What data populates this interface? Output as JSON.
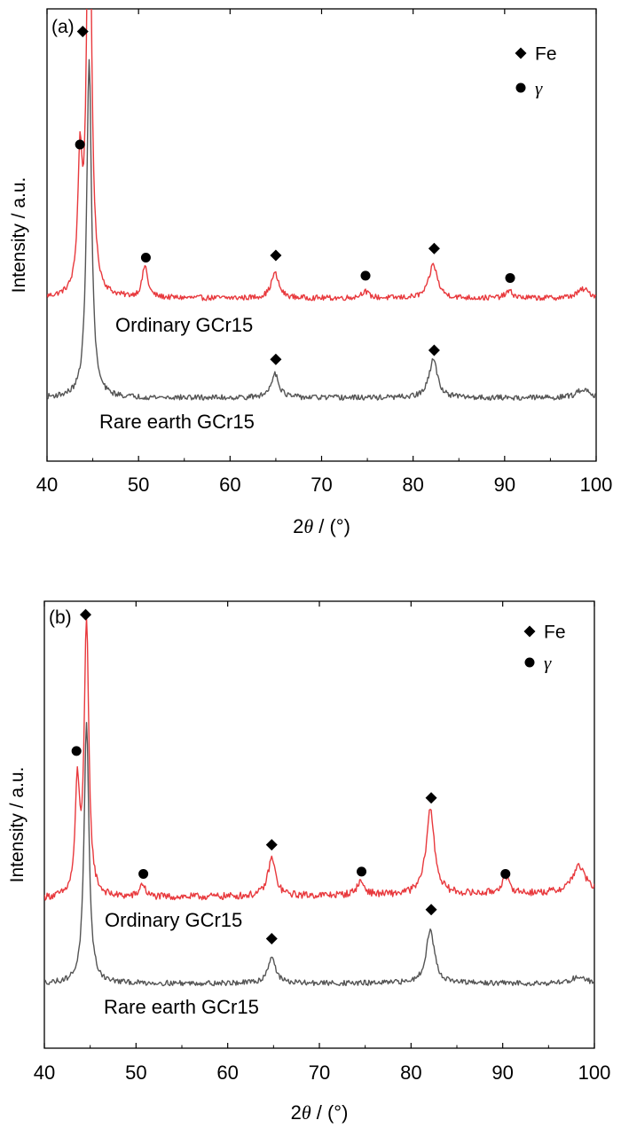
{
  "chart_data": [
    {
      "type": "line",
      "panel_label": "(a)",
      "xlabel_prefix": "2",
      "xlabel_symbol": "θ",
      "xlabel_suffix": " / (°)",
      "ylabel": "Intensity / a.u.",
      "xlim": [
        40,
        100
      ],
      "x_ticks": [
        "40",
        "50",
        "60",
        "70",
        "80",
        "90",
        "100"
      ],
      "legend": {
        "position": "top-right",
        "entries": [
          {
            "marker": "diamond",
            "label": "Fe",
            "italic": false
          },
          {
            "marker": "circle",
            "label": "γ",
            "italic": true
          }
        ]
      },
      "series": [
        {
          "label": "Ordinary GCr15",
          "color": "#e8393d",
          "baseline": 0.36,
          "background_slope": 0.0,
          "noise": 0.006,
          "peaks": [
            {
              "x": 43.6,
              "height": 0.28,
              "width": 0.28
            },
            {
              "x": 44.6,
              "height": 1.05,
              "width": 0.3
            },
            {
              "x": 50.7,
              "height": 0.07,
              "width": 0.35
            },
            {
              "x": 64.9,
              "height": 0.055,
              "width": 0.5
            },
            {
              "x": 74.7,
              "height": 0.015,
              "width": 0.5
            },
            {
              "x": 82.2,
              "height": 0.075,
              "width": 0.55
            },
            {
              "x": 90.5,
              "height": 0.015,
              "width": 0.5
            },
            {
              "x": 98.6,
              "height": 0.02,
              "width": 0.8
            }
          ],
          "markers": [
            {
              "x": 43.9,
              "y": 0.95,
              "type": "diamond"
            },
            {
              "x": 43.6,
              "y": 0.7,
              "type": "circle"
            },
            {
              "x": 50.8,
              "y": 0.45,
              "type": "circle"
            },
            {
              "x": 65.0,
              "y": 0.455,
              "type": "diamond"
            },
            {
              "x": 74.8,
              "y": 0.41,
              "type": "circle"
            },
            {
              "x": 82.3,
              "y": 0.47,
              "type": "diamond"
            },
            {
              "x": 90.6,
              "y": 0.405,
              "type": "circle"
            }
          ]
        },
        {
          "label": "Rare earth GCr15",
          "color": "#555555",
          "baseline": 0.14,
          "background_slope": 0.0,
          "noise": 0.006,
          "peaks": [
            {
              "x": 44.6,
              "height": 0.75,
              "width": 0.32
            },
            {
              "x": 64.9,
              "height": 0.055,
              "width": 0.5
            },
            {
              "x": 82.2,
              "height": 0.085,
              "width": 0.55
            },
            {
              "x": 98.6,
              "height": 0.02,
              "width": 0.8
            }
          ],
          "markers": [
            {
              "x": 65.0,
              "y": 0.225,
              "type": "diamond"
            },
            {
              "x": 82.3,
              "y": 0.245,
              "type": "diamond"
            }
          ]
        }
      ]
    },
    {
      "type": "line",
      "panel_label": "(b)",
      "xlabel_prefix": "2",
      "xlabel_symbol": "θ",
      "xlabel_suffix": " / (°)",
      "ylabel": "Intensity / a.u.",
      "xlim": [
        40,
        100
      ],
      "x_ticks": [
        "40",
        "50",
        "60",
        "70",
        "80",
        "90",
        "100"
      ],
      "legend": {
        "position": "top-right",
        "entries": [
          {
            "marker": "diamond",
            "label": "Fe",
            "italic": false
          },
          {
            "marker": "circle",
            "label": "γ",
            "italic": true
          }
        ]
      },
      "series": [
        {
          "label": "Ordinary GCr15",
          "color": "#e8393d",
          "baseline": 0.335,
          "background_slope": 0.0002,
          "noise": 0.008,
          "peaks": [
            {
              "x": 43.6,
              "height": 0.24,
              "width": 0.28
            },
            {
              "x": 44.6,
              "height": 0.61,
              "width": 0.3
            },
            {
              "x": 50.7,
              "height": 0.03,
              "width": 0.35
            },
            {
              "x": 64.8,
              "height": 0.085,
              "width": 0.5
            },
            {
              "x": 74.5,
              "height": 0.03,
              "width": 0.5
            },
            {
              "x": 82.1,
              "height": 0.19,
              "width": 0.55
            },
            {
              "x": 90.3,
              "height": 0.035,
              "width": 0.55
            },
            {
              "x": 98.3,
              "height": 0.06,
              "width": 0.9
            }
          ],
          "markers": [
            {
              "x": 44.5,
              "y": 0.97,
              "type": "diamond"
            },
            {
              "x": 43.5,
              "y": 0.665,
              "type": "circle"
            },
            {
              "x": 50.8,
              "y": 0.39,
              "type": "circle"
            },
            {
              "x": 64.8,
              "y": 0.455,
              "type": "diamond"
            },
            {
              "x": 74.6,
              "y": 0.395,
              "type": "circle"
            },
            {
              "x": 82.2,
              "y": 0.56,
              "type": "diamond"
            },
            {
              "x": 90.3,
              "y": 0.39,
              "type": "circle"
            }
          ]
        },
        {
          "label": "Rare earth GCr15",
          "color": "#555555",
          "baseline": 0.145,
          "background_slope": 0.0,
          "noise": 0.006,
          "peaks": [
            {
              "x": 44.6,
              "height": 0.58,
              "width": 0.32
            },
            {
              "x": 64.8,
              "height": 0.06,
              "width": 0.5
            },
            {
              "x": 82.1,
              "height": 0.12,
              "width": 0.55
            },
            {
              "x": 98.3,
              "height": 0.015,
              "width": 0.9
            }
          ],
          "markers": [
            {
              "x": 64.8,
              "y": 0.245,
              "type": "diamond"
            },
            {
              "x": 82.2,
              "y": 0.31,
              "type": "diamond"
            }
          ]
        }
      ]
    }
  ]
}
